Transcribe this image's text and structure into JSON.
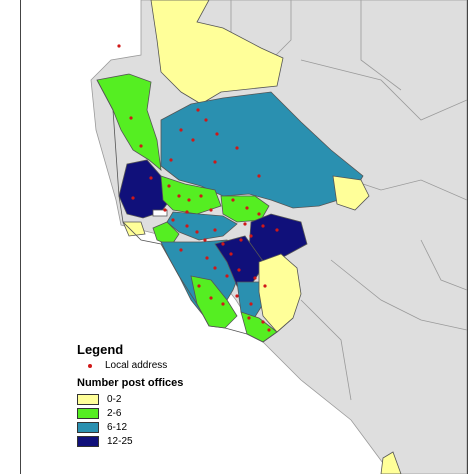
{
  "colors": {
    "ocean": "#ffffff",
    "land": "#dedede",
    "boundary": "#9a9a9a",
    "district_outline": "#555555",
    "point": "#d01818",
    "class_0_2": "#ffff99",
    "class_2_6": "#55ee22",
    "class_6_12": "#2a90b0",
    "class_12_25": "#10107a"
  },
  "legend": {
    "title": "Legend",
    "point_label": "Local address",
    "subtitle": "Number post offices",
    "classes": [
      {
        "label": "0-2",
        "color": "#ffff99"
      },
      {
        "label": "2-6",
        "color": "#55ee22"
      },
      {
        "label": "6-12",
        "color": "#2a90b0"
      },
      {
        "label": "12-25",
        "color": "#10107a"
      }
    ]
  }
}
